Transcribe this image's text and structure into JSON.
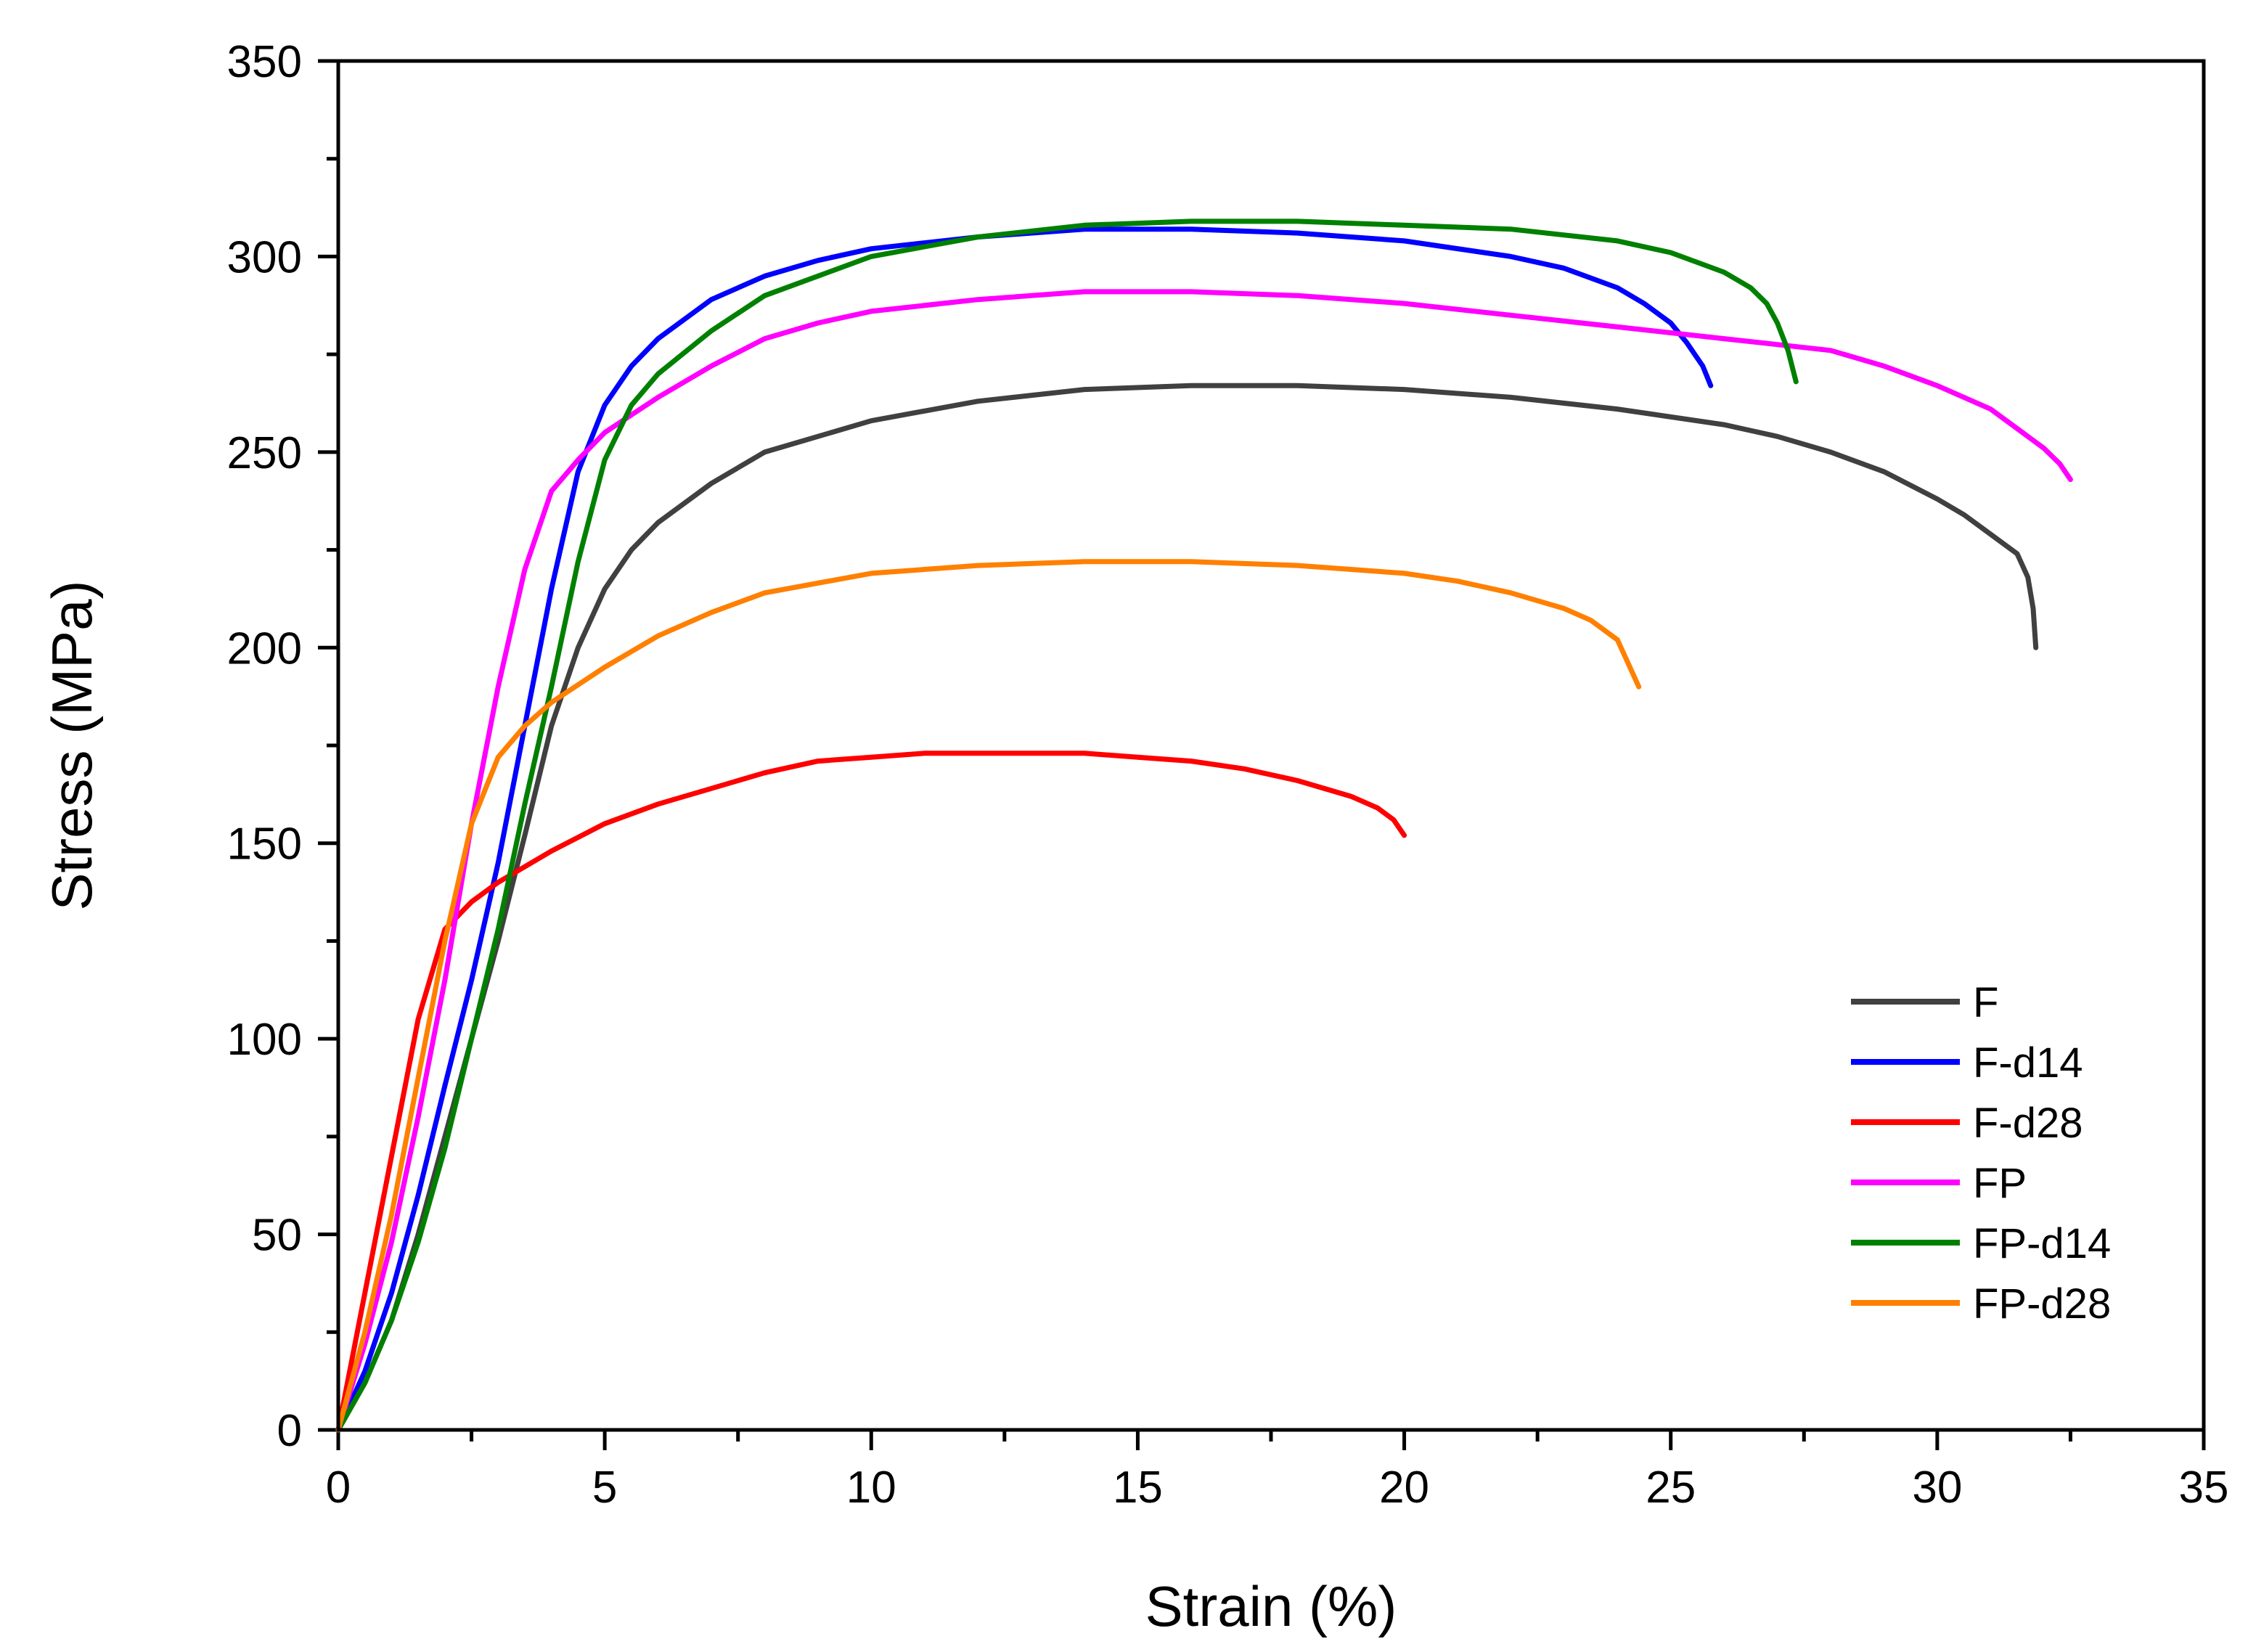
{
  "chart_data": {
    "type": "line",
    "title": "",
    "xlabel": "Strain (%)",
    "ylabel": "Stress (MPa)",
    "xlim": [
      0,
      35
    ],
    "ylim": [
      0,
      350
    ],
    "xticks": [
      0,
      5,
      10,
      15,
      20,
      25,
      30,
      35
    ],
    "yticks": [
      0,
      50,
      100,
      150,
      200,
      250,
      300,
      350
    ],
    "xtick_labels": [
      "0",
      "5",
      "10",
      "15",
      "20",
      "25",
      "30",
      "35"
    ],
    "ytick_labels": [
      "0",
      "50",
      "100",
      "150",
      "200",
      "250",
      "300",
      "350"
    ],
    "grid": false,
    "legend_position": "lower-right",
    "series": [
      {
        "name": "F",
        "color": "#404040",
        "x": [
          0,
          0.5,
          1,
          1.5,
          2,
          2.5,
          3,
          3.5,
          4,
          4.5,
          5,
          5.5,
          6,
          7,
          8,
          10,
          12,
          14,
          16,
          18,
          20,
          22,
          24,
          26,
          27,
          28,
          29,
          30,
          30.5,
          31,
          31.5,
          31.7,
          31.8,
          31.85
        ],
        "values": [
          0,
          12,
          28,
          50,
          75,
          100,
          125,
          152,
          180,
          200,
          215,
          225,
          232,
          242,
          250,
          258,
          263,
          266,
          267,
          267,
          266,
          264,
          261,
          257,
          254,
          250,
          245,
          238,
          234,
          229,
          224,
          218,
          210,
          200
        ]
      },
      {
        "name": "F-d14",
        "color": "#0000ff",
        "x": [
          0,
          0.5,
          1,
          1.5,
          2,
          2.5,
          3,
          3.5,
          4,
          4.5,
          5,
          5.5,
          6,
          7,
          8,
          9,
          10,
          12,
          14,
          16,
          18,
          20,
          22,
          23,
          24,
          24.5,
          25,
          25.3,
          25.6,
          25.75
        ],
        "values": [
          0,
          15,
          35,
          60,
          88,
          115,
          145,
          180,
          215,
          245,
          262,
          272,
          279,
          289,
          295,
          299,
          302,
          305,
          307,
          307,
          306,
          304,
          300,
          297,
          292,
          288,
          283,
          278,
          272,
          267
        ]
      },
      {
        "name": "F-d28",
        "color": "#ff0000",
        "x": [
          0,
          0.5,
          1,
          1.5,
          2,
          2.5,
          3,
          4,
          5,
          6,
          7,
          8,
          9,
          10,
          11,
          12,
          13,
          14,
          15,
          16,
          17,
          18,
          19,
          19.5,
          19.8,
          20
        ],
        "values": [
          0,
          35,
          70,
          105,
          128,
          135,
          140,
          148,
          155,
          160,
          164,
          168,
          171,
          172,
          173,
          173,
          173,
          173,
          172,
          171,
          169,
          166,
          162,
          159,
          156,
          152
        ]
      },
      {
        "name": "FP",
        "color": "#ff00ff",
        "x": [
          0,
          0.5,
          1,
          1.5,
          2,
          2.5,
          3,
          3.5,
          4,
          4.5,
          5,
          6,
          7,
          8,
          9,
          10,
          12,
          14,
          16,
          18,
          20,
          22,
          24,
          26,
          28,
          29,
          30,
          31,
          31.5,
          32,
          32.3,
          32.5
        ],
        "values": [
          0,
          22,
          48,
          80,
          115,
          155,
          190,
          220,
          240,
          248,
          255,
          264,
          272,
          279,
          283,
          286,
          289,
          291,
          291,
          290,
          288,
          285,
          282,
          279,
          276,
          272,
          267,
          261,
          256,
          251,
          247,
          243
        ]
      },
      {
        "name": "FP-d14",
        "color": "#008000",
        "x": [
          0,
          0.5,
          1,
          1.5,
          2,
          2.5,
          3,
          3.5,
          4,
          4.5,
          5,
          5.5,
          6,
          7,
          8,
          10,
          12,
          14,
          16,
          18,
          20,
          22,
          24,
          25,
          26,
          26.5,
          26.8,
          27,
          27.2,
          27.35
        ],
        "values": [
          0,
          12,
          28,
          48,
          72,
          100,
          128,
          160,
          190,
          222,
          248,
          262,
          270,
          281,
          290,
          300,
          305,
          308,
          309,
          309,
          308,
          307,
          304,
          301,
          296,
          292,
          288,
          283,
          276,
          268
        ]
      },
      {
        "name": "FP-d28",
        "color": "#ff8000",
        "x": [
          0,
          0.5,
          1,
          1.5,
          2,
          2.5,
          3,
          3.5,
          4,
          5,
          6,
          7,
          8,
          10,
          12,
          14,
          16,
          18,
          20,
          21,
          22,
          23,
          23.5,
          24,
          24.2,
          24.4
        ],
        "values": [
          0,
          25,
          55,
          90,
          125,
          155,
          172,
          180,
          186,
          195,
          203,
          209,
          214,
          219,
          221,
          222,
          222,
          221,
          219,
          217,
          214,
          210,
          207,
          202,
          196,
          190
        ]
      }
    ]
  }
}
